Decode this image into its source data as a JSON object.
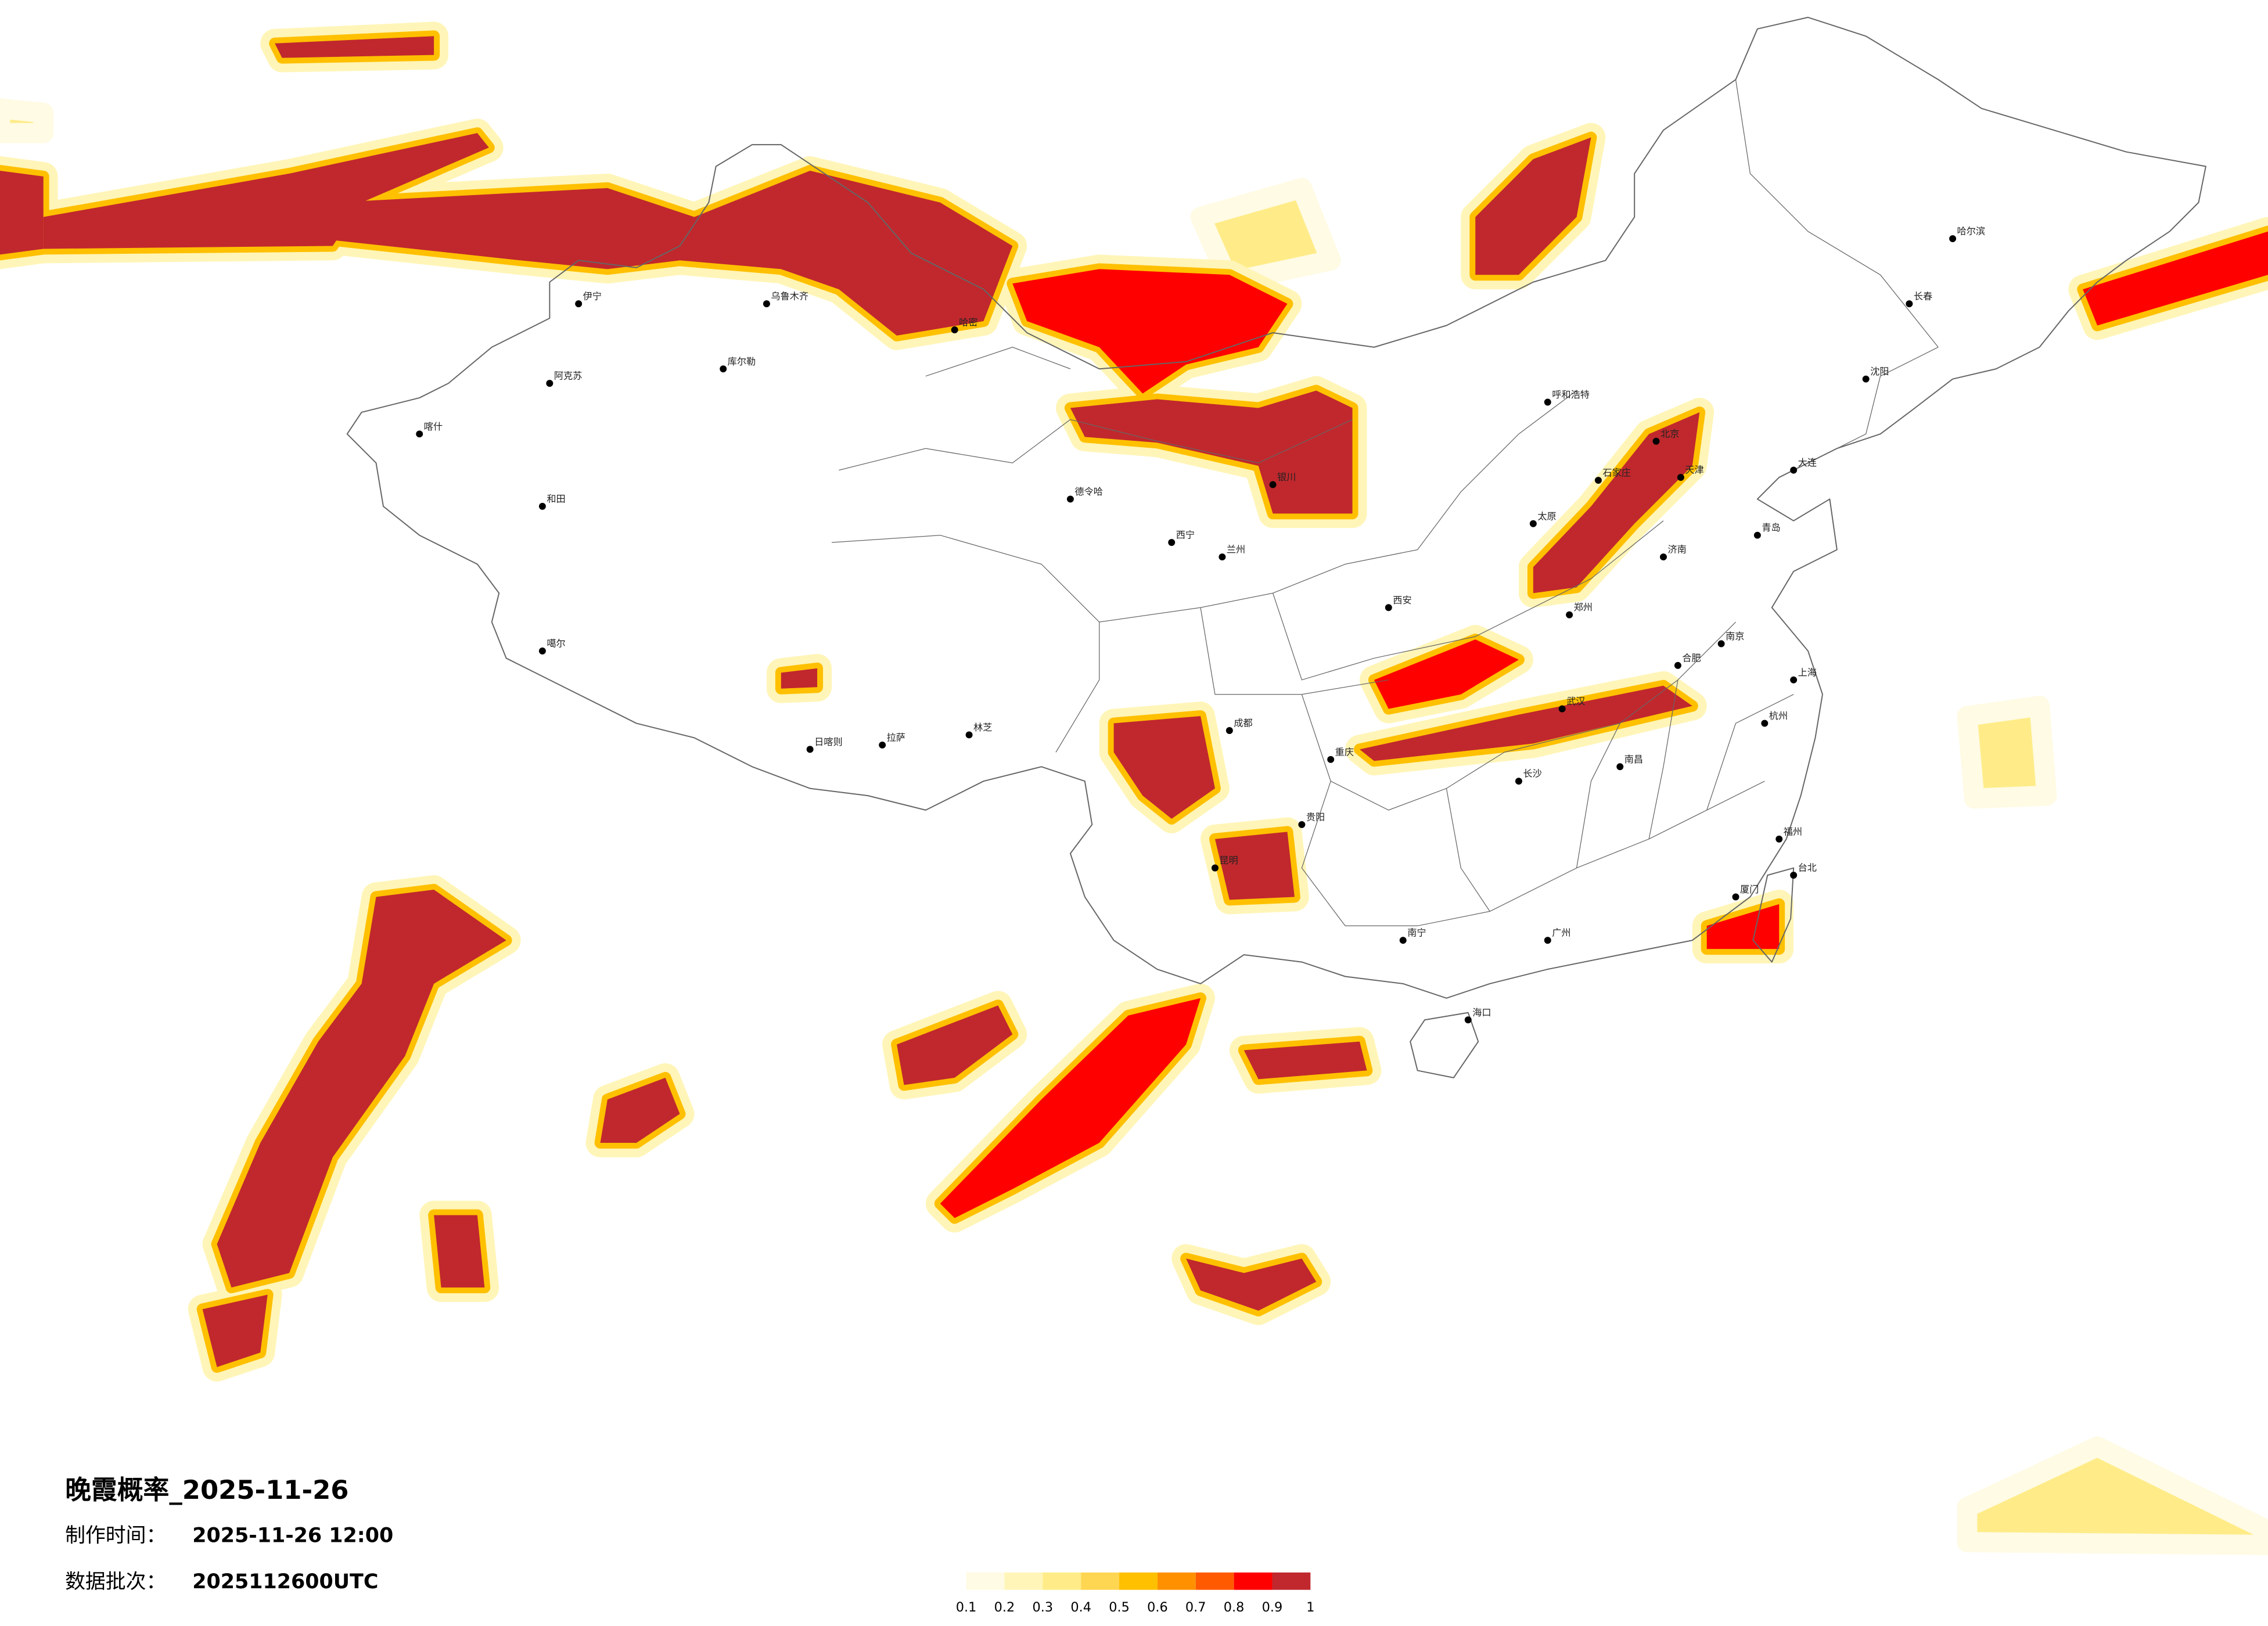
{
  "title": "晚霞概率_2025-11-26",
  "production_time": {
    "label": "制作时间：",
    "value": "2025-11-26 12:00"
  },
  "data_batch": {
    "label": "数据批次：",
    "value": "2025112600UTC"
  },
  "legend": {
    "ticks": [
      0.1,
      0.2,
      0.3,
      0.4,
      0.5,
      0.6,
      0.7,
      0.8,
      0.9,
      1
    ],
    "colors": [
      "#fffbe4",
      "#fff5b8",
      "#ffec88",
      "#ffd652",
      "#ffc000",
      "#ff9100",
      "#ff5a00",
      "#ff0000",
      "#c0282d"
    ]
  },
  "cities": [
    "乌鲁木齐",
    "伊宁",
    "阿克苏",
    "喀什",
    "和田",
    "库尔勒",
    "哈密",
    "德令哈",
    "西宁",
    "拉萨",
    "日喀则",
    "林芝",
    "噶尔",
    "兰州",
    "银川",
    "呼和浩特",
    "北京",
    "天津",
    "石家庄",
    "太原",
    "济南",
    "郑州",
    "西安",
    "成都",
    "重庆",
    "贵阳",
    "昆明",
    "南宁",
    "广州",
    "长沙",
    "武汉",
    "南昌",
    "合肥",
    "南京",
    "上海",
    "杭州",
    "福州",
    "台北",
    "海口",
    "沈阳",
    "长春",
    "哈尔滨",
    "大连",
    "青岛",
    "厦门"
  ]
}
